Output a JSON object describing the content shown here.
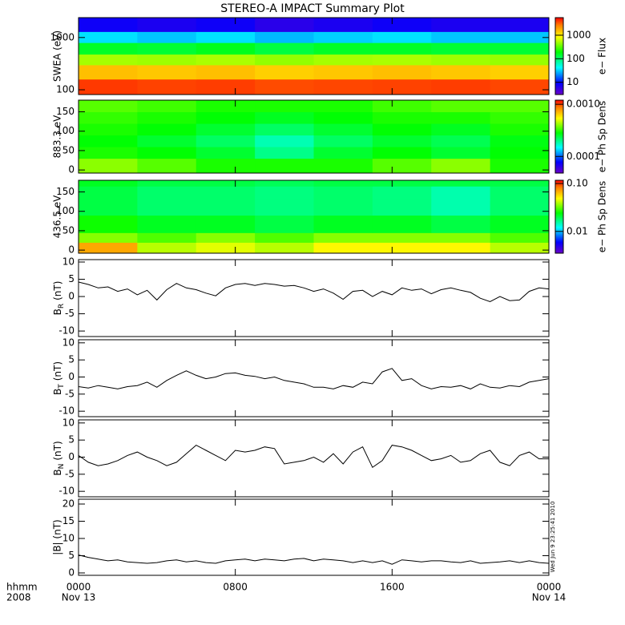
{
  "title": "STEREO-A IMPACT Summary Plot",
  "stamp": "Wed Jun  9 23:25:41 2010",
  "x_axis": {
    "name": "hhmm",
    "year": "2008",
    "xlim": [
      0,
      24
    ],
    "xticks": [
      {
        "value": 0,
        "label": "0000"
      },
      {
        "value": 8,
        "label": "0800"
      },
      {
        "value": 16,
        "label": "1600"
      },
      {
        "value": 24,
        "label": "0000"
      }
    ],
    "dates": [
      {
        "value": 0,
        "label": "Nov 13"
      },
      {
        "value": 24,
        "label": "Nov 14"
      }
    ],
    "x": [
      0,
      0.5,
      1,
      1.5,
      2,
      2.5,
      3,
      3.5,
      4,
      4.5,
      5,
      5.5,
      6,
      6.5,
      7,
      7.5,
      8,
      8.5,
      9,
      9.5,
      10,
      10.5,
      11,
      11.5,
      12,
      12.5,
      13,
      13.5,
      14,
      14.5,
      15,
      15.5,
      16,
      16.5,
      17,
      17.5,
      18,
      18.5,
      19,
      19.5,
      20,
      20.5,
      21,
      21.5,
      22,
      22.5,
      23,
      23.5,
      24
    ]
  },
  "chart_data": [
    {
      "type": "heatmap",
      "ylabel": "SWEA (eV)",
      "ylog": true,
      "ylim": [
        81,
        2400
      ],
      "yticks": [
        100,
        1000
      ],
      "x_bins": [
        0,
        3,
        6,
        9,
        12,
        15,
        18,
        21,
        24
      ],
      "y_bins": [
        81,
        160,
        300,
        480,
        800,
        1300,
        2400
      ],
      "z": [
        [
          4000,
          3800,
          3900,
          3600,
          3700,
          3800,
          3900,
          3700
        ],
        [
          1500,
          1400,
          1500,
          1300,
          1400,
          1500,
          1400,
          1300
        ],
        [
          500,
          480,
          520,
          450,
          500,
          520,
          480,
          460
        ],
        [
          150,
          140,
          160,
          130,
          150,
          150,
          140,
          140
        ],
        [
          35,
          30,
          35,
          28,
          32,
          35,
          30,
          30
        ],
        [
          8,
          7,
          8,
          6,
          7,
          8,
          7,
          7
        ]
      ],
      "zlabel": "e− Flux",
      "zlog": true,
      "zlim": [
        3,
        5600
      ],
      "zticks": [
        10,
        100,
        1000
      ]
    },
    {
      "type": "heatmap",
      "ylabel": "883.3 eV",
      "ylog": false,
      "ylim": [
        -8,
        180
      ],
      "yticks": [
        0,
        50,
        100,
        150
      ],
      "x_bins": [
        0,
        3,
        6,
        9,
        12,
        15,
        18,
        21,
        24
      ],
      "y_bins": [
        -8,
        30,
        60,
        90,
        120,
        150,
        180
      ],
      "z": [
        [
          0.0004,
          0.00035,
          0.0003,
          0.0003,
          0.0003,
          0.00035,
          0.0004,
          0.0003
        ],
        [
          0.0003,
          0.00028,
          0.00025,
          0.0002,
          0.00025,
          0.00028,
          0.00025,
          0.00028
        ],
        [
          0.00028,
          0.00025,
          0.00022,
          0.00018,
          0.00022,
          0.00025,
          0.00023,
          0.00027
        ],
        [
          0.0003,
          0.00028,
          0.00025,
          0.00022,
          0.00025,
          0.00028,
          0.00026,
          0.0003
        ],
        [
          0.00032,
          0.0003,
          0.00028,
          0.00026,
          0.00028,
          0.0003,
          0.0003,
          0.00032
        ],
        [
          0.00035,
          0.00033,
          0.0003,
          0.0003,
          0.0003,
          0.00033,
          0.00035,
          0.00035
        ]
      ],
      "zlabel": "e− Ph Sp Dens",
      "zlog": true,
      "zlim": [
        4.8e-05,
        0.0012
      ],
      "zticks": [
        {
          "value": 0.001,
          "label": "0.0010"
        },
        0.0001
      ]
    },
    {
      "type": "heatmap",
      "ylabel": "436.5 eV",
      "ylog": false,
      "ylim": [
        -8,
        180
      ],
      "yticks": [
        0,
        50,
        100,
        150
      ],
      "x_bins": [
        0,
        3,
        6,
        9,
        12,
        15,
        18,
        21,
        24
      ],
      "y_bins": [
        -8,
        20,
        45,
        90,
        130,
        165,
        180
      ],
      "z": [
        [
          0.07,
          0.04,
          0.045,
          0.04,
          0.05,
          0.05,
          0.05,
          0.04
        ],
        [
          0.035,
          0.03,
          0.035,
          0.03,
          0.035,
          0.035,
          0.035,
          0.03
        ],
        [
          0.025,
          0.022,
          0.022,
          0.02,
          0.022,
          0.022,
          0.02,
          0.022
        ],
        [
          0.02,
          0.018,
          0.018,
          0.017,
          0.018,
          0.017,
          0.015,
          0.018
        ],
        [
          0.02,
          0.018,
          0.018,
          0.017,
          0.018,
          0.017,
          0.015,
          0.018
        ],
        [
          0.022,
          0.02,
          0.02,
          0.019,
          0.02,
          0.02,
          0.02,
          0.02
        ]
      ],
      "zlabel": "e− Ph Sp Dens",
      "zlog": true,
      "zlim": [
        0.0035,
        0.117
      ],
      "zticks": [
        {
          "value": 0.1,
          "label": "0.10"
        },
        0.01
      ]
    },
    {
      "type": "line",
      "ylabel": "B",
      "ylabel_sub": "R",
      "ylabel_unit": "(nT)",
      "color": "#000000",
      "ylim": [
        -11.6,
        10.7
      ],
      "yticks": [
        10,
        5,
        0,
        -5,
        -10
      ],
      "values": [
        4.2,
        3.5,
        2.5,
        2.8,
        1.5,
        2.2,
        0.5,
        1.8,
        -1.0,
        2.0,
        3.8,
        2.5,
        2.0,
        1.0,
        0.2,
        2.5,
        3.5,
        3.8,
        3.2,
        3.8,
        3.5,
        3.0,
        3.2,
        2.5,
        1.5,
        2.2,
        1.0,
        -0.8,
        1.5,
        1.8,
        0.0,
        1.5,
        0.5,
        2.5,
        1.8,
        2.2,
        0.8,
        2.0,
        2.5,
        1.8,
        1.2,
        -0.5,
        -1.5,
        0.0,
        -1.2,
        -1.0,
        1.5,
        2.5,
        2.2
      ]
    },
    {
      "type": "line",
      "ylabel": "B",
      "ylabel_sub": "T",
      "ylabel_unit": "(nT)",
      "color": "#000000",
      "ylim": [
        -11.6,
        10.9
      ],
      "yticks": [
        10,
        5,
        0,
        -5,
        -10
      ],
      "values": [
        -2.8,
        -3.2,
        -2.5,
        -3.0,
        -3.5,
        -2.8,
        -2.5,
        -1.5,
        -3.0,
        -1.0,
        0.5,
        1.8,
        0.5,
        -0.5,
        0.0,
        1.0,
        1.2,
        0.5,
        0.2,
        -0.5,
        0.0,
        -1.0,
        -1.5,
        -2.0,
        -3.0,
        -3.0,
        -3.5,
        -2.5,
        -3.0,
        -1.5,
        -2.0,
        1.5,
        2.5,
        -1.0,
        -0.5,
        -2.5,
        -3.5,
        -2.8,
        -3.0,
        -2.5,
        -3.5,
        -2.0,
        -3.0,
        -3.2,
        -2.5,
        -2.8,
        -1.5,
        -1.0,
        -0.5
      ]
    },
    {
      "type": "line",
      "ylabel": "B",
      "ylabel_sub": "N",
      "ylabel_unit": "(nT)",
      "color": "#000000",
      "ylim": [
        -11.6,
        10.9
      ],
      "yticks": [
        10,
        5,
        0,
        -5,
        -10
      ],
      "values": [
        0.5,
        -1.5,
        -2.5,
        -2.0,
        -1.0,
        0.5,
        1.5,
        0.0,
        -1.0,
        -2.5,
        -1.5,
        1.0,
        3.5,
        2.0,
        0.5,
        -1.0,
        2.0,
        1.5,
        2.0,
        3.0,
        2.5,
        -2.0,
        -1.5,
        -1.0,
        0.0,
        -1.5,
        1.0,
        -2.0,
        1.5,
        3.0,
        -3.0,
        -1.0,
        3.5,
        3.0,
        2.0,
        0.5,
        -1.0,
        -0.5,
        0.5,
        -1.5,
        -1.0,
        1.0,
        2.0,
        -1.5,
        -2.5,
        0.5,
        1.5,
        -0.5,
        -0.5
      ]
    },
    {
      "type": "line",
      "ylabel": "|B| (nT)",
      "color": "#000000",
      "ylim": [
        -0.7,
        21.4
      ],
      "yticks": [
        20,
        15,
        10,
        5,
        0
      ],
      "values": [
        5.2,
        4.5,
        4.0,
        3.5,
        3.8,
        3.2,
        3.0,
        2.8,
        3.0,
        3.5,
        3.8,
        3.2,
        3.5,
        3.0,
        2.8,
        3.5,
        3.8,
        4.0,
        3.5,
        4.0,
        3.8,
        3.5,
        4.0,
        4.2,
        3.5,
        4.0,
        3.8,
        3.5,
        3.0,
        3.5,
        3.0,
        3.5,
        2.5,
        3.8,
        3.5,
        3.2,
        3.5,
        3.5,
        3.2,
        3.0,
        3.5,
        2.8,
        3.0,
        3.2,
        3.5,
        3.0,
        3.5,
        3.0,
        2.8
      ]
    }
  ]
}
